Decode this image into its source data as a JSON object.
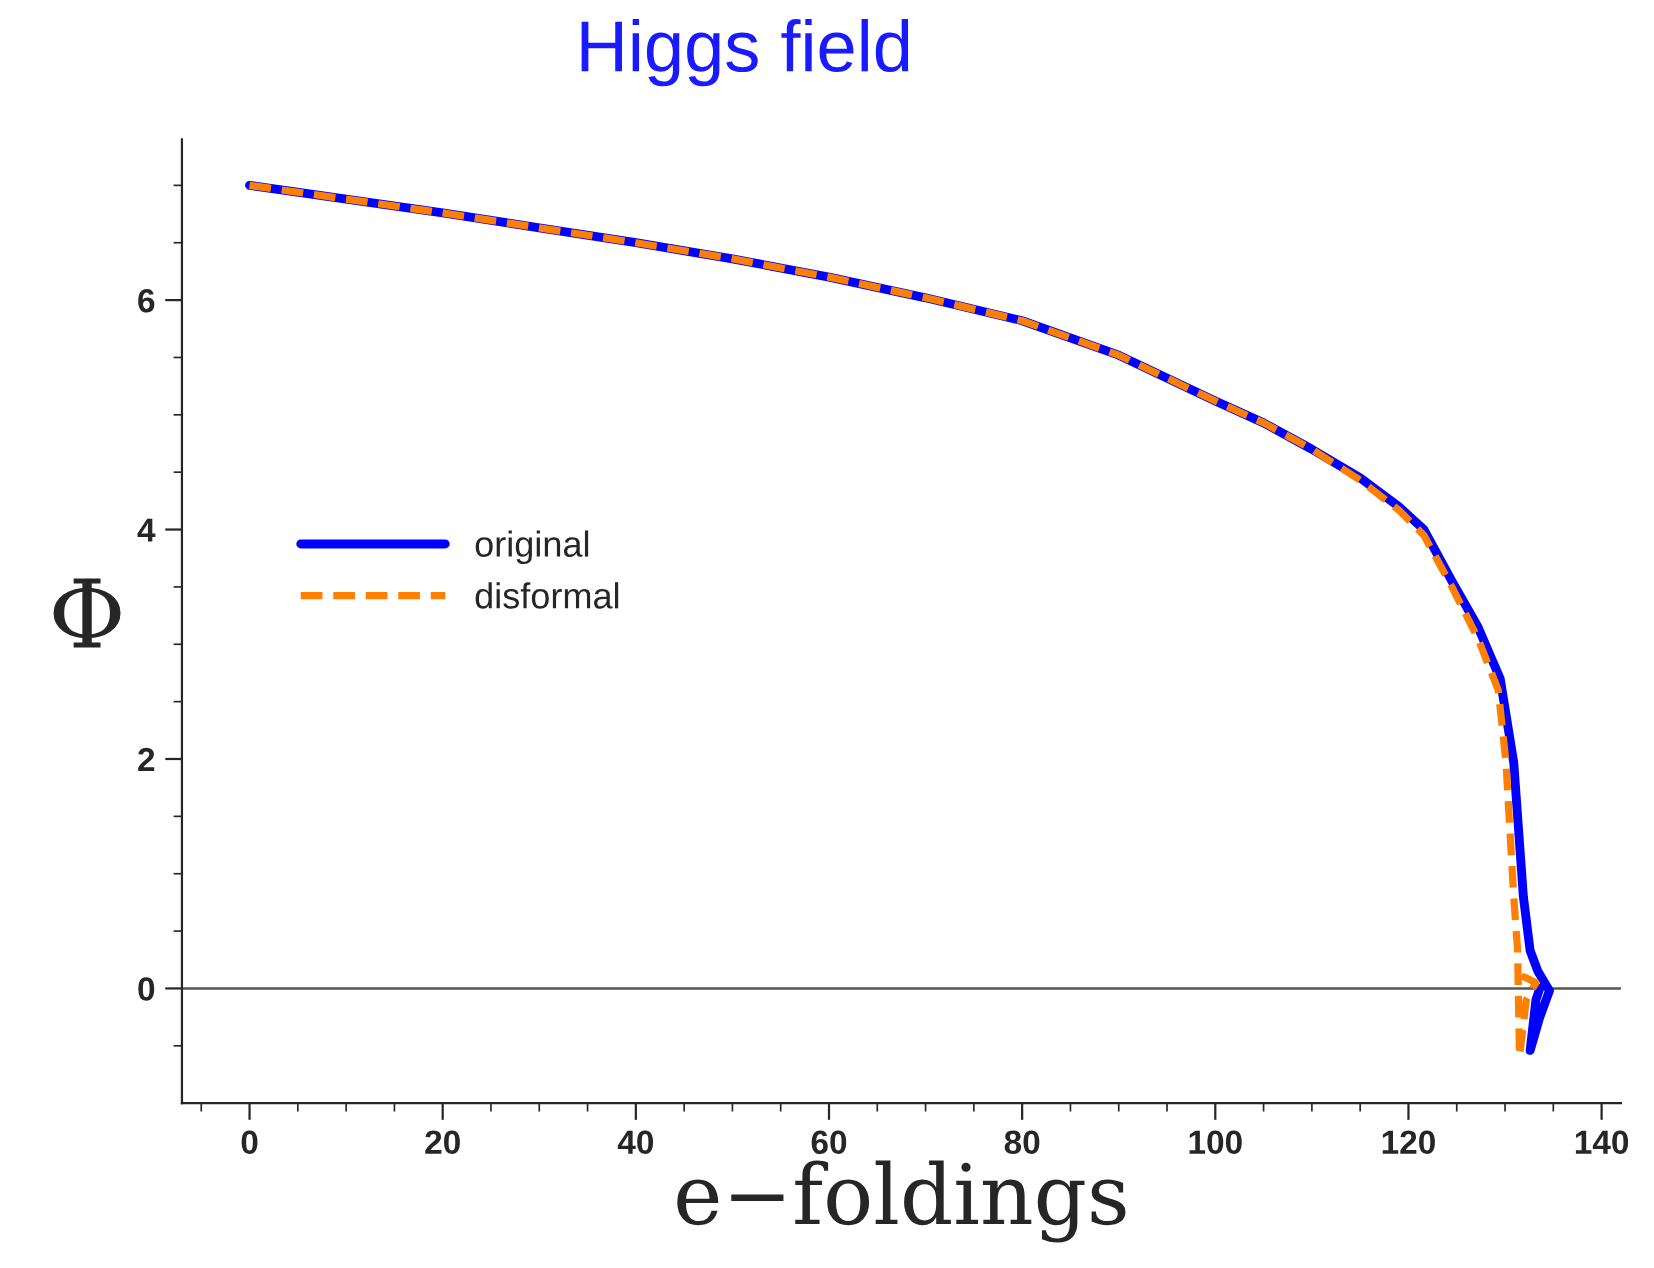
{
  "chart_data": {
    "type": "line",
    "title": "Higgs field",
    "xlabel": "e−foldings",
    "ylabel": "Φ",
    "xlim": [
      -7,
      142
    ],
    "ylim": [
      -1,
      7.4
    ],
    "xticks": [
      {
        "value": -5,
        "label": null
      },
      0,
      {
        "value": 5,
        "label": null
      },
      {
        "value": 10,
        "label": null
      },
      {
        "value": 15,
        "label": null
      },
      20,
      {
        "value": 25,
        "label": null
      },
      {
        "value": 30,
        "label": null
      },
      {
        "value": 35,
        "label": null
      },
      40,
      {
        "value": 45,
        "label": null
      },
      {
        "value": 50,
        "label": null
      },
      {
        "value": 55,
        "label": null
      },
      60,
      {
        "value": 65,
        "label": null
      },
      {
        "value": 70,
        "label": null
      },
      {
        "value": 75,
        "label": null
      },
      80,
      {
        "value": 85,
        "label": null
      },
      {
        "value": 90,
        "label": null
      },
      {
        "value": 95,
        "label": null
      },
      100,
      {
        "value": 105,
        "label": null
      },
      {
        "value": 110,
        "label": null
      },
      {
        "value": 115,
        "label": null
      },
      120,
      {
        "value": 125,
        "label": null
      },
      {
        "value": 130,
        "label": null
      },
      {
        "value": 135,
        "label": null
      },
      140
    ],
    "yticks": [
      {
        "value": -0.5,
        "label": null
      },
      0,
      {
        "value": 0.5,
        "label": null
      },
      {
        "value": 1,
        "label": null
      },
      {
        "value": 1.5,
        "label": null
      },
      2,
      {
        "value": 2.5,
        "label": null
      },
      {
        "value": 3,
        "label": null
      },
      {
        "value": 3.5,
        "label": null
      },
      4,
      {
        "value": 4.5,
        "label": null
      },
      {
        "value": 5,
        "label": null
      },
      {
        "value": 5.5,
        "label": null
      },
      6,
      {
        "value": 6.5,
        "label": null
      },
      {
        "value": 7,
        "label": null
      }
    ],
    "ref_lines": [
      {
        "axis": "y",
        "value": 0,
        "color": "#555555"
      }
    ],
    "grid": false,
    "legend": "left",
    "marker": "none",
    "series": [
      {
        "name": "original",
        "color": "#0000ff",
        "line_style": "solid",
        "x": [
          0,
          10,
          20,
          30,
          40,
          50,
          60,
          70,
          80,
          90,
          100,
          105,
          110,
          115,
          119,
          121.6,
          124.5,
          127.2,
          129.5,
          130.9,
          131.9,
          132.6,
          133.4,
          134.6,
          133.6,
          132.6,
          133.2,
          133.6
        ],
        "values": [
          7.0,
          6.88,
          6.76,
          6.63,
          6.5,
          6.36,
          6.2,
          6.02,
          5.82,
          5.52,
          5.12,
          4.93,
          4.7,
          4.45,
          4.2,
          4.0,
          3.55,
          3.15,
          2.7,
          1.97,
          0.8,
          0.33,
          0.15,
          -0.02,
          -0.25,
          -0.54,
          -0.1,
          0.0
        ]
      },
      {
        "name": "disformal",
        "color": "#ff8000",
        "line_style": "dashed",
        "x": [
          0,
          10,
          20,
          30,
          40,
          50,
          60,
          70,
          80,
          90,
          100,
          105,
          110,
          115,
          119,
          121.6,
          124.5,
          127.2,
          129.3,
          130.1,
          130.9,
          131.3,
          131.5,
          132.2,
          133.2,
          132.0,
          132.5
        ],
        "values": [
          7.0,
          6.88,
          6.76,
          6.63,
          6.5,
          6.36,
          6.2,
          6.02,
          5.82,
          5.52,
          5.12,
          4.93,
          4.7,
          4.43,
          4.17,
          3.95,
          3.5,
          3.05,
          2.6,
          1.97,
          0.8,
          0.33,
          -0.59,
          -0.1,
          0.05,
          0.1,
          0.0
        ]
      }
    ]
  }
}
